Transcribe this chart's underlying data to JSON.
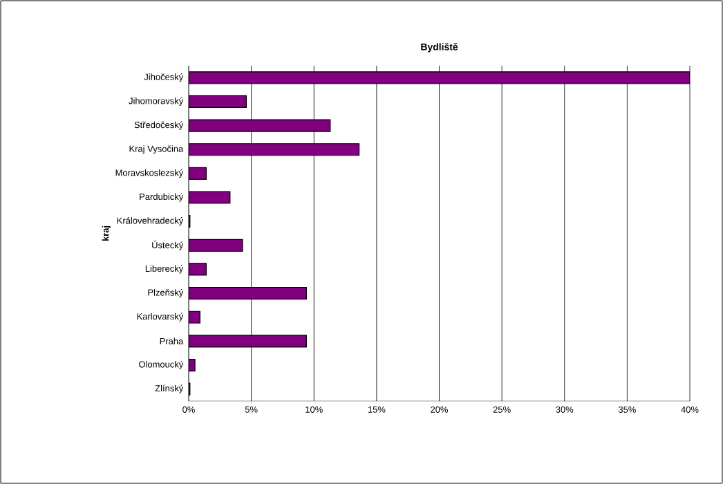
{
  "chart_data": {
    "type": "bar",
    "orientation": "horizontal",
    "title": "Bydliště",
    "ylabel": "kraj",
    "categories": [
      "Jihočeský",
      "Jihomoravský",
      "Středočeský",
      "Kraj Vysočina",
      "Moravskoslezský",
      "Pardubický",
      "Královehradecký",
      "Ústecký",
      "Liberecký",
      "Plzeňský",
      "Karlovarský",
      "Praha",
      "Olomoucký",
      "Zlínský"
    ],
    "values": [
      40.0,
      4.6,
      11.3,
      13.6,
      1.4,
      3.3,
      0.1,
      4.3,
      1.4,
      9.4,
      0.9,
      9.4,
      0.5,
      0.1
    ],
    "color": "#800080",
    "xlim": [
      0,
      40
    ],
    "xticks": [
      {
        "value": 0,
        "label": "0%"
      },
      {
        "value": 5,
        "label": "5%"
      },
      {
        "value": 10,
        "label": "10%"
      },
      {
        "value": 15,
        "label": "15%"
      },
      {
        "value": 20,
        "label": "20%"
      },
      {
        "value": 25,
        "label": "25%"
      },
      {
        "value": 30,
        "label": "30%"
      },
      {
        "value": 35,
        "label": "35%"
      },
      {
        "value": 40,
        "label": "40%"
      }
    ],
    "grid": "x"
  }
}
